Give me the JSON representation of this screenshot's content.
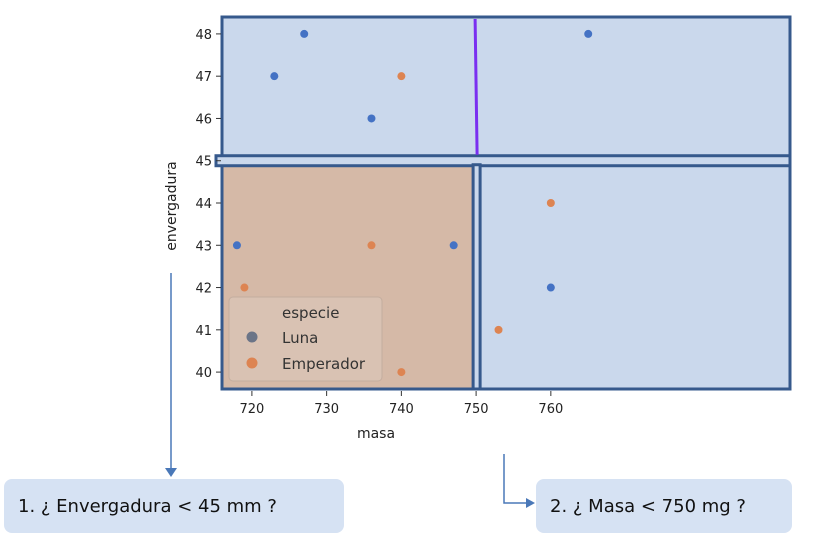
{
  "chart_data": {
    "type": "scatter",
    "xlabel": "masa",
    "ylabel": "envergadura",
    "xlim": [
      716,
      792
    ],
    "ylim": [
      39.6,
      48.4
    ],
    "x_ticks": [
      720,
      730,
      740,
      750,
      760
    ],
    "y_ticks": [
      40,
      41,
      42,
      43,
      44,
      45,
      46,
      47,
      48
    ],
    "legend": {
      "title": "especie",
      "position": "lower-left",
      "entries": [
        "Luna",
        "Emperador"
      ]
    },
    "series": [
      {
        "name": "Luna",
        "color": "#4472c4",
        "points": [
          [
            723,
            47
          ],
          [
            727,
            48
          ],
          [
            736,
            46
          ],
          [
            765,
            48
          ],
          [
            718,
            43
          ],
          [
            747,
            43
          ],
          [
            760,
            42
          ]
        ]
      },
      {
        "name": "Emperador",
        "color": "#dd8452",
        "points": [
          [
            740,
            47
          ],
          [
            719,
            42
          ],
          [
            736,
            43
          ],
          [
            740,
            40
          ],
          [
            760,
            44
          ],
          [
            753,
            41
          ]
        ]
      }
    ],
    "regions": [
      {
        "x": [
          716,
          792
        ],
        "y": [
          45,
          48.4
        ],
        "color": "#cad8ec"
      },
      {
        "x": [
          716,
          750
        ],
        "y": [
          39.6,
          45
        ],
        "color": "#d5b9a7"
      },
      {
        "x": [
          750,
          792
        ],
        "y": [
          39.6,
          45
        ],
        "color": "#cad8ec"
      }
    ],
    "split_lines": [
      {
        "orientation": "horizontal",
        "value": 45
      },
      {
        "orientation": "vertical",
        "value": 750,
        "y": [
          39.6,
          45
        ]
      },
      {
        "orientation": "vertical",
        "value": 750,
        "y": [
          45,
          48.4
        ],
        "color": "#7a2ff0"
      }
    ]
  },
  "questions": {
    "q1": "1. ¿ Envergadura < 45 mm ?",
    "q2": "2. ¿ Masa < 750 mg ?"
  }
}
